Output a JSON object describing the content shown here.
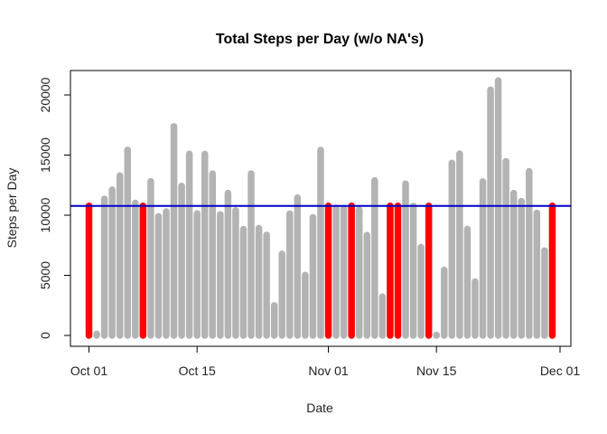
{
  "chart_data": {
    "type": "bar",
    "title": "Total Steps per Day (w/o NA's)",
    "xlabel": "Date",
    "ylabel": "Steps per Day",
    "x_range": [
      "2012-09-30",
      "2012-12-01"
    ],
    "ylim": [
      0,
      22000
    ],
    "x_ticks": [
      {
        "date": "2012-10-01",
        "label": "Oct 01"
      },
      {
        "date": "2012-10-15",
        "label": "Oct 15"
      },
      {
        "date": "2012-11-01",
        "label": "Nov 01"
      },
      {
        "date": "2012-11-15",
        "label": "Nov 15"
      },
      {
        "date": "2012-12-01",
        "label": "Dec 01"
      }
    ],
    "y_ticks": [
      0,
      5000,
      10000,
      15000,
      20000
    ],
    "reference_line": {
      "value": 10766.19,
      "color": "#0000cc"
    },
    "colors": {
      "observed": "#b3b3b3",
      "imputed": "#ff0000",
      "axis": "#000000"
    },
    "series": [
      {
        "name": "observed",
        "x": [
          "2012-10-02",
          "2012-10-03",
          "2012-10-04",
          "2012-10-05",
          "2012-10-06",
          "2012-10-07",
          "2012-10-09",
          "2012-10-10",
          "2012-10-11",
          "2012-10-12",
          "2012-10-13",
          "2012-10-14",
          "2012-10-15",
          "2012-10-16",
          "2012-10-17",
          "2012-10-18",
          "2012-10-19",
          "2012-10-20",
          "2012-10-21",
          "2012-10-22",
          "2012-10-23",
          "2012-10-24",
          "2012-10-25",
          "2012-10-26",
          "2012-10-27",
          "2012-10-28",
          "2012-10-29",
          "2012-10-30",
          "2012-10-31",
          "2012-11-02",
          "2012-11-03",
          "2012-11-05",
          "2012-11-06",
          "2012-11-07",
          "2012-11-08",
          "2012-11-11",
          "2012-11-12",
          "2012-11-13",
          "2012-11-15",
          "2012-11-16",
          "2012-11-17",
          "2012-11-18",
          "2012-11-19",
          "2012-11-20",
          "2012-11-21",
          "2012-11-22",
          "2012-11-23",
          "2012-11-24",
          "2012-11-25",
          "2012-11-26",
          "2012-11-27",
          "2012-11-28",
          "2012-11-29"
        ],
        "values": [
          126,
          11352,
          12116,
          13294,
          15420,
          11015,
          12811,
          9900,
          10304,
          17382,
          12426,
          15098,
          10139,
          15084,
          13452,
          10056,
          11829,
          10395,
          8821,
          13460,
          8918,
          8355,
          2492,
          6778,
          10119,
          11458,
          5018,
          9819,
          15414,
          10600,
          10571,
          10439,
          8334,
          12883,
          3219,
          12608,
          10765,
          7336,
          41,
          5441,
          14339,
          15110,
          8841,
          4472,
          12787,
          20427,
          21194,
          14478,
          11834,
          11162,
          13646,
          10183,
          7047
        ]
      },
      {
        "name": "imputed",
        "x": [
          "2012-10-01",
          "2012-10-08",
          "2012-11-01",
          "2012-11-04",
          "2012-11-09",
          "2012-11-10",
          "2012-11-14",
          "2012-11-30"
        ],
        "values": [
          10766.19,
          10766.19,
          10766.19,
          10766.19,
          10766.19,
          10766.19,
          10766.19,
          10766.19
        ]
      }
    ]
  }
}
